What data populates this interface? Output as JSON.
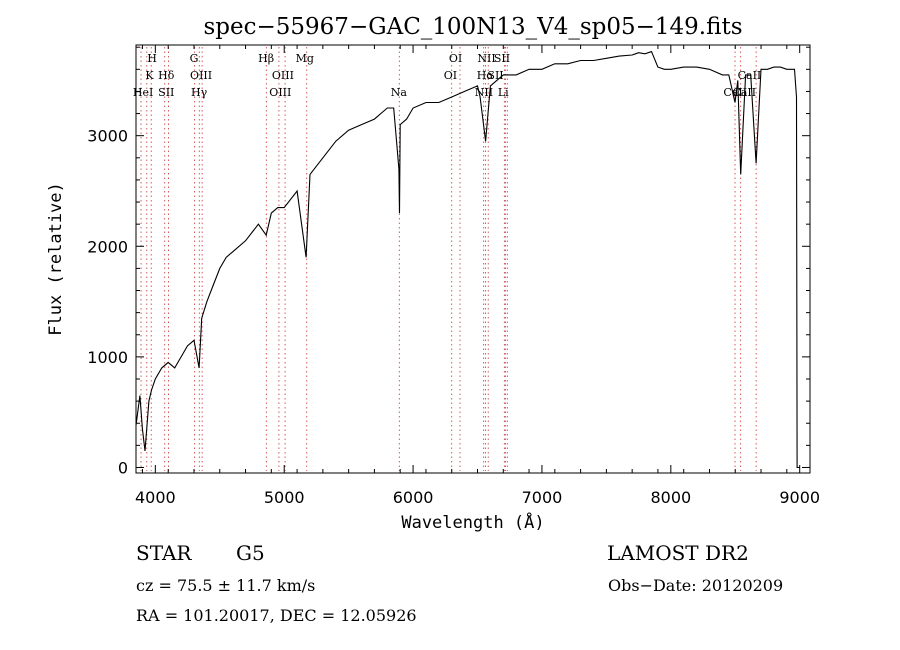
{
  "chart_data": {
    "type": "line",
    "title": "spec−55967−GAC_100N13_V4_sp05−149.fits",
    "xlabel": "Wavelength (Å)",
    "ylabel": "Flux (relative)",
    "xlim": [
      3850,
      9080
    ],
    "ylim": [
      -50,
      3820
    ],
    "xticks": [
      4000,
      5000,
      6000,
      7000,
      8000,
      9000
    ],
    "yticks": [
      0,
      1000,
      2000,
      3000
    ],
    "grid": false,
    "legend": "none",
    "line_color": "#000000",
    "marker_line_color": "#cc3333",
    "series": [
      {
        "x": [
          3850,
          3880,
          3900,
          3920,
          3950,
          3970,
          4000,
          4050,
          4100,
          4150,
          4200,
          4250,
          4300,
          4340,
          4360,
          4400,
          4450,
          4500,
          4550,
          4600,
          4700,
          4800,
          4860,
          4900,
          4950,
          5000,
          5100,
          5170,
          5200,
          5300,
          5400,
          5500,
          5600,
          5700,
          5800,
          5850,
          5890,
          5895,
          5900,
          5950,
          6000,
          6100,
          6200,
          6300,
          6400,
          6500,
          6520,
          6563,
          6600,
          6650,
          6700,
          6800,
          6900,
          7000,
          7100,
          7200,
          7300,
          7400,
          7500,
          7600,
          7700,
          7750,
          7800,
          7850,
          7900,
          7950,
          8000,
          8100,
          8200,
          8300,
          8400,
          8450,
          8498,
          8520,
          8542,
          8580,
          8620,
          8662,
          8700,
          8750,
          8800,
          8850,
          8900,
          8960,
          8975,
          8980,
          9000
        ],
        "y": [
          380,
          650,
          350,
          150,
          600,
          700,
          800,
          900,
          950,
          900,
          1000,
          1100,
          1150,
          900,
          1350,
          1500,
          1650,
          1800,
          1900,
          1950,
          2050,
          2200,
          2100,
          2300,
          2350,
          2350,
          2500,
          1900,
          2650,
          2800,
          2950,
          3050,
          3100,
          3150,
          3250,
          3250,
          2700,
          2300,
          3100,
          3150,
          3250,
          3300,
          3300,
          3350,
          3400,
          3450,
          3350,
          2950,
          3450,
          3500,
          3550,
          3550,
          3600,
          3600,
          3650,
          3650,
          3680,
          3680,
          3700,
          3720,
          3730,
          3750,
          3740,
          3760,
          3620,
          3600,
          3600,
          3620,
          3620,
          3600,
          3550,
          3550,
          3300,
          3500,
          2650,
          3550,
          3550,
          2750,
          3600,
          3600,
          3620,
          3620,
          3600,
          3600,
          3350,
          0,
          0
        ]
      }
    ],
    "lines": [
      {
        "label": "H",
        "x": 3934
      },
      {
        "label": "K",
        "x": 3968
      },
      {
        "label": "HeI",
        "x": 3889
      },
      {
        "label": "Hδ",
        "x": 4102
      },
      {
        "label": "SII",
        "x": 4073
      },
      {
        "label": "G",
        "x": 4305
      },
      {
        "label": "OIII",
        "x": 4363
      },
      {
        "label": "Hγ",
        "x": 4341
      },
      {
        "label": "Hβ",
        "x": 4861
      },
      {
        "label": "OIII",
        "x": 4959
      },
      {
        "label": "OIII",
        "x": 5007
      },
      {
        "label": "Mg",
        "x": 5175
      },
      {
        "label": "Na",
        "x": 5893
      },
      {
        "label": "OI",
        "x": 6300
      },
      {
        "label": "OI",
        "x": 6364
      },
      {
        "label": "NII",
        "x": 6548
      },
      {
        "label": "Hα",
        "x": 6563
      },
      {
        "label": "NII",
        "x": 6583
      },
      {
        "label": "SII",
        "x": 6716
      },
      {
        "label": "SII",
        "x": 6731
      },
      {
        "label": "Li",
        "x": 6708
      },
      {
        "label": "CaII",
        "x": 8498
      },
      {
        "label": "CaII",
        "x": 8542
      },
      {
        "label": "CaII",
        "x": 8662
      }
    ]
  },
  "line_markers": [
    {
      "label": "H",
      "x": 3975,
      "row": 0,
      "line": 3934
    },
    {
      "label": "K",
      "x": 3955,
      "row": 1,
      "line": 3968
    },
    {
      "label": "HeI",
      "x": 3905,
      "row": 2,
      "line": 3889
    },
    {
      "label": "Hδ",
      "x": 4085,
      "row": 1,
      "line": 4102
    },
    {
      "label": "SII",
      "x": 4085,
      "row": 2,
      "line": 4073
    },
    {
      "label": "G",
      "x": 4300,
      "row": 0,
      "line": 4305
    },
    {
      "label": "OIII",
      "x": 4355,
      "row": 1,
      "line": 4363
    },
    {
      "label": "Hγ",
      "x": 4340,
      "row": 2,
      "line": 4341
    },
    {
      "label": "Hβ",
      "x": 4860,
      "row": 0,
      "line": 4861
    },
    {
      "label": "OIII",
      "x": 4990,
      "row": 1,
      "line": 4959
    },
    {
      "label": "OIII",
      "x": 4970,
      "row": 2,
      "line": 5007
    },
    {
      "label": "Mg",
      "x": 5160,
      "row": 0,
      "line": 5175
    },
    {
      "label": "Na",
      "x": 5890,
      "row": 2,
      "line": 5893
    },
    {
      "label": "OI",
      "x": 6330,
      "row": 0,
      "line": 6300
    },
    {
      "label": "OI",
      "x": 6290,
      "row": 1,
      "line": 6364
    },
    {
      "label": "NII",
      "x": 6570,
      "row": 0,
      "line": 6548
    },
    {
      "label": "Hα",
      "x": 6560,
      "row": 1,
      "line": 6563
    },
    {
      "label": "NII",
      "x": 6550,
      "row": 2,
      "line": 6583
    },
    {
      "label": "SII",
      "x": 6690,
      "row": 0,
      "line": 6716
    },
    {
      "label": "SII",
      "x": 6640,
      "row": 1,
      "line": 6731
    },
    {
      "label": "Li",
      "x": 6700,
      "row": 2,
      "line": 6708
    },
    {
      "label": "CaII",
      "x": 8500,
      "row": 2,
      "line": 8498
    },
    {
      "label": "CaII",
      "x": 8610,
      "row": 1,
      "line": 8542
    },
    {
      "label": "CaII",
      "x": 8570,
      "row": 2,
      "line": 8662
    }
  ],
  "info": {
    "class": "STAR",
    "subclass": "G5",
    "survey": "LAMOST DR2",
    "cz": "cz = 75.5 ± 11.7 km/s",
    "obs_date": "Obs−Date: 20120209",
    "radec": "RA = 101.20017, DEC =  12.05926"
  }
}
